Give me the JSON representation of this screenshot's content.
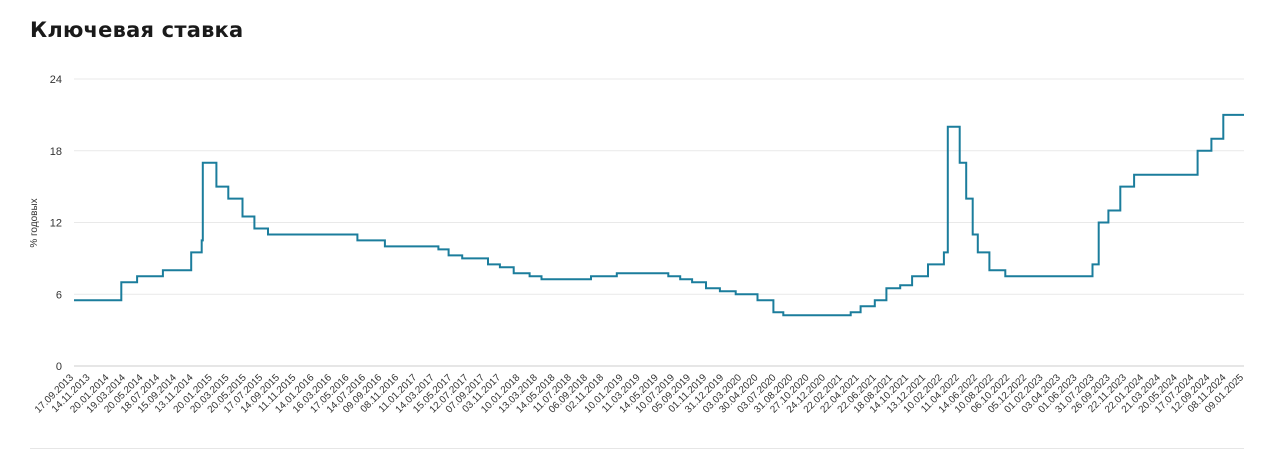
{
  "page": {
    "title": "Ключевая ставка"
  },
  "chart_data": {
    "type": "line",
    "title": "Ключевая ставка",
    "ylabel": "% годовых",
    "xlabel": "",
    "ylim": [
      0,
      24
    ],
    "yticks": [
      0,
      6,
      12,
      18,
      24
    ],
    "grid": true,
    "colors": {
      "line": "#1b7d9c",
      "grid": "#e9e9e9",
      "axis": "#cccccc"
    },
    "x_tick_labels": [
      "17.09.2013",
      "14.11.2013",
      "20.01.2014",
      "19.03.2014",
      "20.05.2014",
      "18.07.2014",
      "15.09.2014",
      "13.11.2014",
      "20.01.2015",
      "20.03.2015",
      "20.05.2015",
      "17.07.2015",
      "14.09.2015",
      "11.11.2015",
      "14.01.2016",
      "16.03.2016",
      "17.05.2016",
      "14.07.2016",
      "09.09.2016",
      "08.11.2016",
      "11.01.2017",
      "14.03.2017",
      "15.05.2017",
      "12.07.2017",
      "07.09.2017",
      "03.11.2017",
      "10.01.2018",
      "13.03.2018",
      "14.05.2018",
      "11.07.2018",
      "06.09.2018",
      "02.11.2018",
      "10.01.2019",
      "11.03.2019",
      "14.05.2019",
      "10.07.2019",
      "05.09.2019",
      "01.11.2019",
      "31.12.2019",
      "03.03.2020",
      "30.04.2020",
      "03.07.2020",
      "31.08.2020",
      "27.10.2020",
      "24.12.2020",
      "22.02.2021",
      "22.04.2021",
      "22.06.2021",
      "18.08.2021",
      "14.10.2021",
      "13.12.2021",
      "10.02.2022",
      "11.04.2022",
      "14.06.2022",
      "10.08.2022",
      "06.10.2022",
      "05.12.2022",
      "01.02.2023",
      "03.04.2023",
      "01.06.2023",
      "31.07.2023",
      "26.09.2023",
      "22.11.2023",
      "22.01.2024",
      "21.03.2024",
      "20.05.2024",
      "17.07.2024",
      "12.09.2024",
      "08.11.2024",
      "09.01.2025"
    ],
    "series": [
      {
        "name": "",
        "x": [
          "2013-09-17",
          "2014-03-03",
          "2014-04-28",
          "2014-07-28",
          "2014-11-05",
          "2014-12-12",
          "2014-12-16",
          "2015-02-02",
          "2015-03-16",
          "2015-05-05",
          "2015-06-16",
          "2015-08-03",
          "2016-06-14",
          "2016-09-19",
          "2017-03-27",
          "2017-05-02",
          "2017-06-19",
          "2017-09-18",
          "2017-10-30",
          "2017-12-18",
          "2018-02-12",
          "2018-03-26",
          "2018-09-17",
          "2018-12-17",
          "2019-06-17",
          "2019-07-29",
          "2019-09-09",
          "2019-10-28",
          "2019-12-16",
          "2020-02-10",
          "2020-04-27",
          "2020-06-22",
          "2020-07-27",
          "2021-03-22",
          "2021-04-26",
          "2021-06-15",
          "2021-07-26",
          "2021-09-13",
          "2021-10-25",
          "2021-12-20",
          "2022-02-14",
          "2022-02-28",
          "2022-04-11",
          "2022-05-04",
          "2022-05-27",
          "2022-06-14",
          "2022-07-25",
          "2022-09-19",
          "2023-07-24",
          "2023-08-15",
          "2023-09-18",
          "2023-10-30",
          "2023-12-18",
          "2024-07-29",
          "2024-09-16",
          "2024-10-28",
          "2025-01-09"
        ],
        "values": [
          5.5,
          7.0,
          7.5,
          8.0,
          9.5,
          10.5,
          17.0,
          15.0,
          14.0,
          12.5,
          11.5,
          11.0,
          10.5,
          10.0,
          9.75,
          9.25,
          9.0,
          8.5,
          8.25,
          7.75,
          7.5,
          7.25,
          7.5,
          7.75,
          7.5,
          7.25,
          7.0,
          6.5,
          6.25,
          6.0,
          5.5,
          4.5,
          4.25,
          4.5,
          5.0,
          5.5,
          6.5,
          6.75,
          7.5,
          8.5,
          9.5,
          20.0,
          17.0,
          14.0,
          11.0,
          9.5,
          8.0,
          7.5,
          8.5,
          12.0,
          13.0,
          15.0,
          16.0,
          18.0,
          19.0,
          21.0,
          21.0
        ]
      }
    ]
  }
}
